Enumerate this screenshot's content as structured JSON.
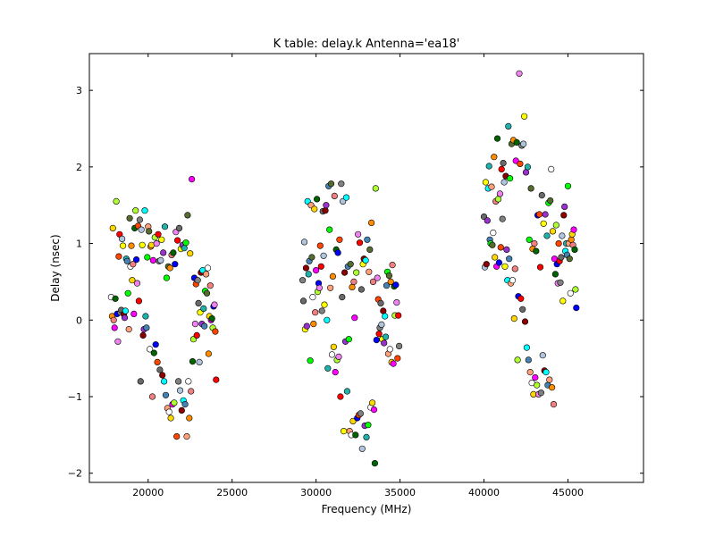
{
  "chart_data": {
    "type": "scatter",
    "title": "K table: delay.k       Antenna='ea18'",
    "xlabel": "Frequency (MHz)",
    "ylabel": "Delay (nsec)",
    "xlim": [
      16500,
      49500
    ],
    "ylim": [
      -2.12,
      3.48
    ],
    "xticks": [
      20000,
      25000,
      30000,
      35000,
      40000,
      45000
    ],
    "yticks": [
      -2,
      -1,
      0,
      1,
      2,
      3
    ],
    "grid": false,
    "marker_colors": [
      "#ffffff",
      "#ff0000",
      "#00ff00",
      "#0000ff",
      "#00ffff",
      "#ff00ff",
      "#ffff00",
      "#ff8c00",
      "#808080",
      "#ffa07a",
      "#ee82ee",
      "#20b2aa",
      "#006400",
      "#8b0000",
      "#ffd700",
      "#696969",
      "#556b2f",
      "#ff4500",
      "#4682b4",
      "#adff2f",
      "#9932cc",
      "#f08080",
      "#b0c4de"
    ],
    "points": [
      [
        17800,
        0.3
      ],
      [
        17850,
        0.05
      ],
      [
        17900,
        1.2
      ],
      [
        17950,
        0.0
      ],
      [
        18000,
        -0.1
      ],
      [
        18050,
        0.28
      ],
      [
        18100,
        1.55
      ],
      [
        18150,
        0.08
      ],
      [
        18200,
        -0.28
      ],
      [
        18250,
        0.83
      ],
      [
        18300,
        1.12
      ],
      [
        18350,
        0.1
      ],
      [
        18400,
        0.13
      ],
      [
        18450,
        1.06
      ],
      [
        18500,
        0.97
      ],
      [
        18550,
        0.08
      ],
      [
        18600,
        0.03
      ],
      [
        18650,
        0.12
      ],
      [
        18700,
        0.8
      ],
      [
        18750,
        0.77
      ],
      [
        18800,
        0.35
      ],
      [
        18850,
        -0.12
      ],
      [
        18900,
        1.33
      ],
      [
        18950,
        0.7
      ],
      [
        19000,
        0.97
      ],
      [
        19050,
        0.52
      ],
      [
        19100,
        0.73
      ],
      [
        19150,
        0.08
      ],
      [
        19200,
        1.2
      ],
      [
        19250,
        1.43
      ],
      [
        19300,
        0.79
      ],
      [
        19350,
        0.48
      ],
      [
        19400,
        1.23
      ],
      [
        19450,
        0.25
      ],
      [
        19500,
        1.31
      ],
      [
        19550,
        -0.8
      ],
      [
        19600,
        1.18
      ],
      [
        19650,
        0.98
      ],
      [
        19700,
        -0.2
      ],
      [
        19750,
        -0.12
      ],
      [
        19800,
        1.43
      ],
      [
        19850,
        0.05
      ],
      [
        19900,
        -0.1
      ],
      [
        19950,
        0.82
      ],
      [
        20000,
        1.22
      ],
      [
        20050,
        1.16
      ],
      [
        20100,
        -0.38
      ],
      [
        20150,
        0.96
      ],
      [
        20200,
        0.98
      ],
      [
        20250,
        -1.0
      ],
      [
        20300,
        0.78
      ],
      [
        20350,
        -0.43
      ],
      [
        20400,
        1.08
      ],
      [
        20450,
        -0.32
      ],
      [
        20500,
        1.0
      ],
      [
        20550,
        -0.55
      ],
      [
        20600,
        1.12
      ],
      [
        20650,
        0.77
      ],
      [
        20700,
        -0.65
      ],
      [
        20750,
        0.78
      ],
      [
        20800,
        1.05
      ],
      [
        20850,
        -0.72
      ],
      [
        20900,
        0.88
      ],
      [
        20950,
        -0.8
      ],
      [
        21000,
        1.22
      ],
      [
        21050,
        -0.98
      ],
      [
        21100,
        0.55
      ],
      [
        21150,
        -1.15
      ],
      [
        21200,
        0.7
      ],
      [
        21250,
        -1.2
      ],
      [
        21300,
        0.68
      ],
      [
        21350,
        -1.28
      ],
      [
        21400,
        0.85
      ],
      [
        21450,
        -1.1
      ],
      [
        21500,
        0.88
      ],
      [
        21550,
        -1.08
      ],
      [
        21600,
        0.73
      ],
      [
        21650,
        1.15
      ],
      [
        21700,
        -1.52
      ],
      [
        21750,
        1.04
      ],
      [
        21800,
        -0.8
      ],
      [
        21850,
        1.2
      ],
      [
        21900,
        -0.92
      ],
      [
        21950,
        0.93
      ],
      [
        22000,
        -1.18
      ],
      [
        22050,
        0.98
      ],
      [
        22100,
        -1.05
      ],
      [
        22150,
        0.94
      ],
      [
        22200,
        -1.1
      ],
      [
        22250,
        1.01
      ],
      [
        22300,
        -1.52
      ],
      [
        22350,
        1.37
      ],
      [
        22400,
        -0.8
      ],
      [
        22450,
        -1.28
      ],
      [
        22500,
        0.87
      ],
      [
        22550,
        -0.93
      ],
      [
        22600,
        1.84
      ],
      [
        22650,
        -0.54
      ],
      [
        22700,
        -0.25
      ],
      [
        22750,
        0.55
      ],
      [
        22800,
        -0.05
      ],
      [
        22850,
        0.47
      ],
      [
        22900,
        -0.2
      ],
      [
        22950,
        0.52
      ],
      [
        23000,
        0.22
      ],
      [
        23050,
        -0.55
      ],
      [
        23100,
        0.1
      ],
      [
        23150,
        0.62
      ],
      [
        23200,
        -0.05
      ],
      [
        23250,
        0.65
      ],
      [
        23300,
        0.15
      ],
      [
        23350,
        -0.08
      ],
      [
        23400,
        0.38
      ],
      [
        23450,
        0.6
      ],
      [
        23500,
        0.35
      ],
      [
        23550,
        0.68
      ],
      [
        23600,
        -0.44
      ],
      [
        23650,
        0.05
      ],
      [
        23700,
        0.45
      ],
      [
        23750,
        0.0
      ],
      [
        23800,
        0.02
      ],
      [
        23850,
        -0.1
      ],
      [
        23900,
        0.18
      ],
      [
        23950,
        0.2
      ],
      [
        24000,
        -0.15
      ],
      [
        24050,
        -0.78
      ],
      [
        29200,
        0.52
      ],
      [
        29250,
        0.25
      ],
      [
        29300,
        1.02
      ],
      [
        29350,
        -0.12
      ],
      [
        29400,
        0.68
      ],
      [
        29450,
        -0.08
      ],
      [
        29500,
        1.55
      ],
      [
        29550,
        0.6
      ],
      [
        29600,
        0.77
      ],
      [
        29650,
        -0.53
      ],
      [
        29700,
        1.5
      ],
      [
        29750,
        0.82
      ],
      [
        29800,
        0.3
      ],
      [
        29850,
        -0.05
      ],
      [
        29900,
        1.45
      ],
      [
        29950,
        0.1
      ],
      [
        30000,
        0.65
      ],
      [
        30050,
        1.58
      ],
      [
        30100,
        0.37
      ],
      [
        30150,
        0.48
      ],
      [
        30200,
        0.42
      ],
      [
        30250,
        0.97
      ],
      [
        30300,
        0.7
      ],
      [
        30350,
        0.12
      ],
      [
        30400,
        1.42
      ],
      [
        30450,
        0.84
      ],
      [
        30500,
        0.2
      ],
      [
        30550,
        1.43
      ],
      [
        30600,
        1.5
      ],
      [
        30650,
        0.0
      ],
      [
        30700,
        -0.63
      ],
      [
        30750,
        1.75
      ],
      [
        30800,
        1.18
      ],
      [
        30850,
        0.42
      ],
      [
        30900,
        1.78
      ],
      [
        30950,
        -0.45
      ],
      [
        31000,
        0.57
      ],
      [
        31050,
        -0.35
      ],
      [
        31100,
        1.62
      ],
      [
        31150,
        -0.68
      ],
      [
        31200,
        0.92
      ],
      [
        31250,
        -0.52
      ],
      [
        31300,
        0.88
      ],
      [
        31350,
        -0.48
      ],
      [
        31400,
        1.05
      ],
      [
        31450,
        -1.0
      ],
      [
        31500,
        1.78
      ],
      [
        31550,
        0.3
      ],
      [
        31600,
        1.55
      ],
      [
        31650,
        -1.45
      ],
      [
        31700,
        0.62
      ],
      [
        31750,
        -0.28
      ],
      [
        31800,
        1.6
      ],
      [
        31850,
        -0.93
      ],
      [
        31900,
        0.7
      ],
      [
        31950,
        -0.25
      ],
      [
        32000,
        -1.45
      ],
      [
        32050,
        0.73
      ],
      [
        32100,
        -1.5
      ],
      [
        32150,
        0.43
      ],
      [
        32200,
        -1.32
      ],
      [
        32250,
        0.5
      ],
      [
        32300,
        0.03
      ],
      [
        32350,
        -1.5
      ],
      [
        32400,
        0.62
      ],
      [
        32450,
        -1.28
      ],
      [
        32500,
        1.12
      ],
      [
        32550,
        -1.24
      ],
      [
        32600,
        1.01
      ],
      [
        32650,
        -1.22
      ],
      [
        32700,
        0.4
      ],
      [
        32750,
        -1.68
      ],
      [
        32800,
        0.73
      ],
      [
        32850,
        0.8
      ],
      [
        32900,
        -1.38
      ],
      [
        32950,
        0.78
      ],
      [
        33000,
        -1.53
      ],
      [
        33050,
        1.05
      ],
      [
        33100,
        -1.37
      ],
      [
        33150,
        0.63
      ],
      [
        33200,
        0.92
      ],
      [
        33250,
        -1.14
      ],
      [
        33300,
        1.27
      ],
      [
        33350,
        -1.08
      ],
      [
        33400,
        0.5
      ],
      [
        33450,
        -1.17
      ],
      [
        33500,
        -1.87
      ],
      [
        33550,
        1.72
      ],
      [
        33600,
        -0.26
      ],
      [
        33650,
        0.55
      ],
      [
        33700,
        0.27
      ],
      [
        33750,
        -0.18
      ],
      [
        33800,
        -0.1
      ],
      [
        33850,
        0.22
      ],
      [
        33900,
        -0.06
      ],
      [
        33950,
        -0.25
      ],
      [
        34000,
        0.12
      ],
      [
        34050,
        -0.3
      ],
      [
        34100,
        0.05
      ],
      [
        34150,
        -0.22
      ],
      [
        34200,
        0.45
      ],
      [
        34250,
        0.63
      ],
      [
        34300,
        -0.44
      ],
      [
        34350,
        0.58
      ],
      [
        34400,
        -0.38
      ],
      [
        34450,
        0.5
      ],
      [
        34500,
        -0.55
      ],
      [
        34550,
        0.72
      ],
      [
        34600,
        -0.57
      ],
      [
        34650,
        0.44
      ],
      [
        34700,
        0.06
      ],
      [
        34750,
        0.46
      ],
      [
        34800,
        0.23
      ],
      [
        34850,
        -0.5
      ],
      [
        34900,
        0.06
      ],
      [
        34950,
        -0.34
      ],
      [
        40000,
        1.35
      ],
      [
        40050,
        0.69
      ],
      [
        40100,
        1.8
      ],
      [
        40150,
        0.73
      ],
      [
        40200,
        1.3
      ],
      [
        40250,
        1.72
      ],
      [
        40300,
        2.01
      ],
      [
        40350,
        1.05
      ],
      [
        40400,
        1.0
      ],
      [
        40450,
        1.74
      ],
      [
        40500,
        0.98
      ],
      [
        40550,
        1.14
      ],
      [
        40600,
        2.13
      ],
      [
        40650,
        0.82
      ],
      [
        40700,
        1.55
      ],
      [
        40750,
        0.7
      ],
      [
        40800,
        2.37
      ],
      [
        40850,
        1.58
      ],
      [
        40900,
        0.75
      ],
      [
        40950,
        1.65
      ],
      [
        41000,
        0.95
      ],
      [
        41050,
        1.97
      ],
      [
        41100,
        1.32
      ],
      [
        41150,
        2.05
      ],
      [
        41200,
        1.8
      ],
      [
        41250,
        0.7
      ],
      [
        41300,
        1.88
      ],
      [
        41350,
        0.92
      ],
      [
        41400,
        0.52
      ],
      [
        41450,
        2.53
      ],
      [
        41500,
        0.8
      ],
      [
        41550,
        1.85
      ],
      [
        41600,
        0.48
      ],
      [
        41650,
        2.3
      ],
      [
        41700,
        0.52
      ],
      [
        41750,
        2.35
      ],
      [
        41800,
        0.02
      ],
      [
        41850,
        0.67
      ],
      [
        41900,
        2.08
      ],
      [
        41950,
        2.32
      ],
      [
        42000,
        -0.52
      ],
      [
        42050,
        0.31
      ],
      [
        42100,
        3.22
      ],
      [
        42150,
        2.04
      ],
      [
        42200,
        0.28
      ],
      [
        42250,
        2.28
      ],
      [
        42300,
        0.14
      ],
      [
        42350,
        2.3
      ],
      [
        42400,
        2.66
      ],
      [
        42450,
        -0.02
      ],
      [
        42500,
        1.93
      ],
      [
        42550,
        -0.36
      ],
      [
        42600,
        2.0
      ],
      [
        42650,
        -0.52
      ],
      [
        42700,
        1.05
      ],
      [
        42750,
        -0.68
      ],
      [
        42800,
        1.72
      ],
      [
        42850,
        -0.82
      ],
      [
        42900,
        0.93
      ],
      [
        42950,
        -0.97
      ],
      [
        43000,
        1.0
      ],
      [
        43050,
        -0.75
      ],
      [
        43100,
        0.9
      ],
      [
        43150,
        -0.85
      ],
      [
        43200,
        1.37
      ],
      [
        43250,
        -0.97
      ],
      [
        43300,
        1.38
      ],
      [
        43350,
        0.69
      ],
      [
        43400,
        -0.95
      ],
      [
        43450,
        1.63
      ],
      [
        43500,
        -0.46
      ],
      [
        43550,
        1.26
      ],
      [
        43600,
        -0.66
      ],
      [
        43650,
        1.38
      ],
      [
        43700,
        -0.68
      ],
      [
        43750,
        1.1
      ],
      [
        43800,
        -0.85
      ],
      [
        43850,
        1.53
      ],
      [
        43900,
        -0.78
      ],
      [
        43950,
        1.56
      ],
      [
        44000,
        1.97
      ],
      [
        44050,
        -0.88
      ],
      [
        44100,
        1.16
      ],
      [
        44150,
        -1.1
      ],
      [
        44200,
        0.8
      ],
      [
        44250,
        0.6
      ],
      [
        44300,
        1.24
      ],
      [
        44350,
        0.73
      ],
      [
        44400,
        0.48
      ],
      [
        44450,
        1.0
      ],
      [
        44500,
        0.77
      ],
      [
        44550,
        0.49
      ],
      [
        44600,
        0.82
      ],
      [
        44650,
        1.1
      ],
      [
        44700,
        0.25
      ],
      [
        44750,
        1.37
      ],
      [
        44800,
        1.48
      ],
      [
        44850,
        0.9
      ],
      [
        44900,
        1.0
      ],
      [
        44950,
        0.85
      ],
      [
        45000,
        1.75
      ],
      [
        45050,
        1.0
      ],
      [
        45100,
        0.8
      ],
      [
        45150,
        0.35
      ],
      [
        45200,
        1.05
      ],
      [
        45250,
        1.12
      ],
      [
        45300,
        0.98
      ],
      [
        45350,
        1.18
      ],
      [
        45400,
        0.92
      ],
      [
        45450,
        0.4
      ],
      [
        45500,
        0.16
      ]
    ]
  }
}
